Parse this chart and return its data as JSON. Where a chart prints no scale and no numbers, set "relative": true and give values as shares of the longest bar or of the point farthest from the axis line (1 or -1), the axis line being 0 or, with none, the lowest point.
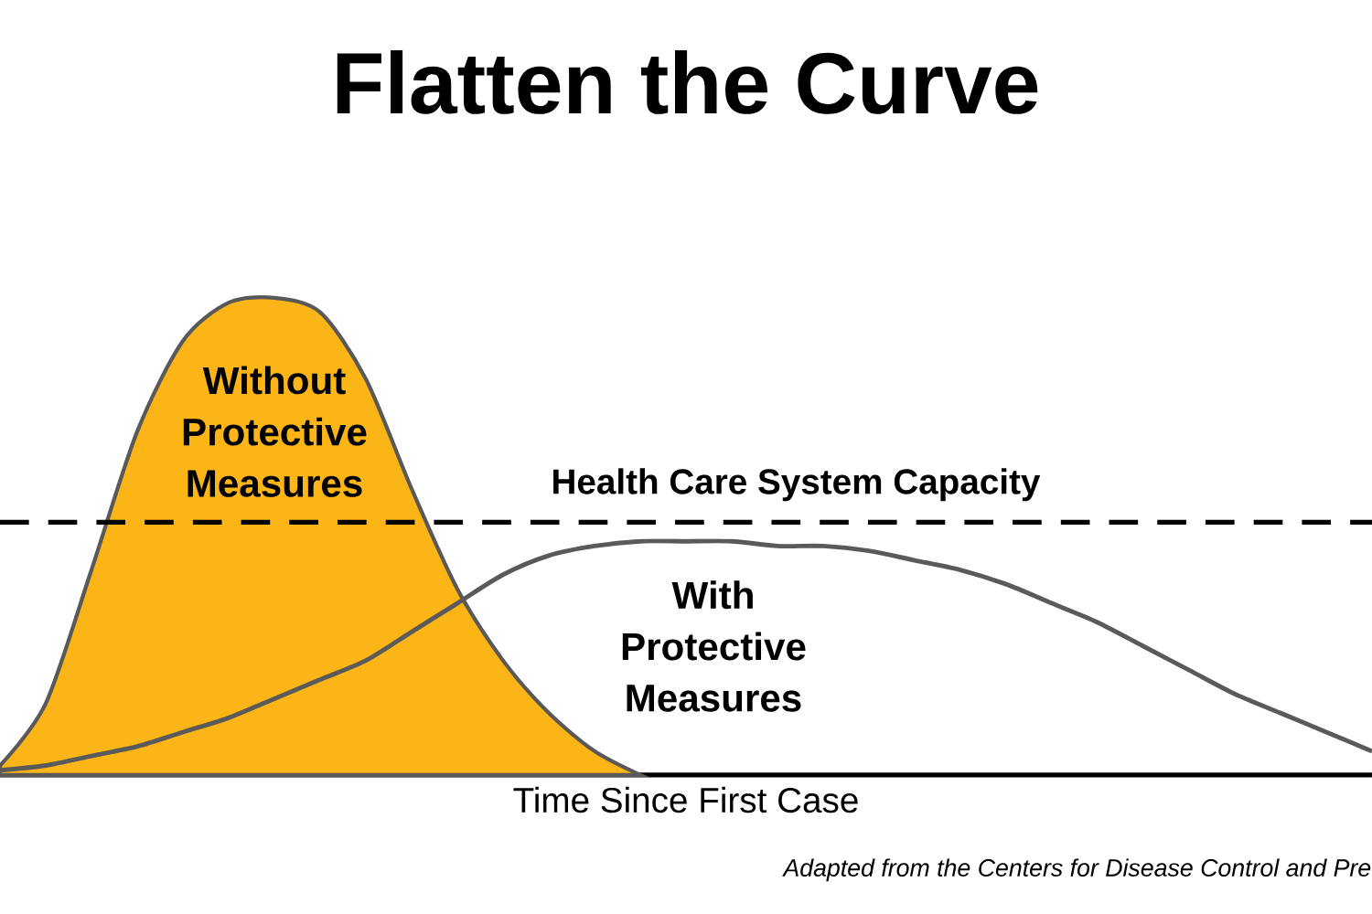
{
  "chart_data": {
    "type": "area",
    "title": "Flatten the Curve",
    "xlabel": "Time Since First Case",
    "relative": true,
    "categories": [
      null,
      null,
      null,
      null,
      null,
      null,
      null,
      null,
      null,
      null,
      null,
      null,
      null,
      null,
      null,
      null,
      null,
      null,
      null,
      null,
      null,
      null,
      null,
      null,
      null,
      null,
      null,
      null,
      null,
      null,
      null
    ],
    "series": [
      {
        "name": "Without Protective Measures",
        "color": "#fbb516",
        "values": [
          0.02,
          0.15,
          0.43,
          0.72,
          0.91,
          0.99,
          1.0,
          0.97,
          0.83,
          0.6,
          0.39,
          0.24,
          0.13,
          0.05,
          0,
          null,
          null,
          null,
          null,
          null,
          null,
          null,
          null,
          null,
          null,
          null,
          null,
          null,
          null,
          null,
          null
        ]
      },
      {
        "name": "With Protective Measures",
        "type": "line",
        "color": "#5a5a5a",
        "values": [
          0.01,
          0.02,
          0.04,
          0.06,
          0.09,
          0.12,
          0.16,
          0.2,
          0.24,
          0.3,
          0.36,
          0.42,
          0.46,
          0.48,
          0.49,
          0.49,
          0.49,
          0.48,
          0.48,
          0.47,
          0.45,
          0.43,
          0.4,
          0.36,
          0.32,
          0.27,
          0.22,
          0.17,
          0.13,
          0.09,
          0.05
        ]
      }
    ],
    "ref_lines": [
      {
        "axis": "y",
        "value": 0.53,
        "label": "Health Care System Capacity",
        "color": "#000000",
        "line_style": "dashed"
      }
    ],
    "annotations": [
      "Adapted from the Centers for Disease Control and Pre"
    ]
  }
}
